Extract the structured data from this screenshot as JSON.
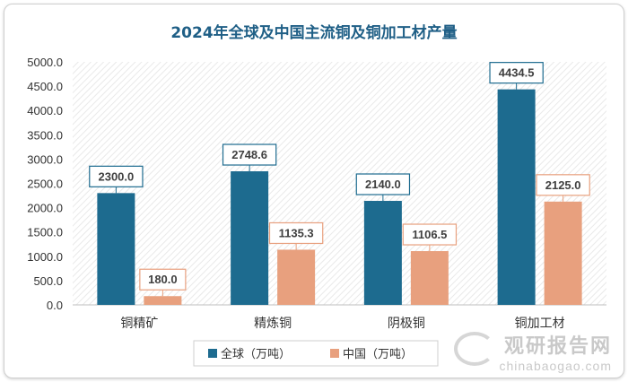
{
  "chart_data": {
    "type": "bar",
    "title": "2024年全球及中国主流铜及铜加工材产量",
    "categories": [
      "铜精矿",
      "精炼铜",
      "阴极铜",
      "铜加工材"
    ],
    "series": [
      {
        "name": "全球（万吨）",
        "color": "#1d6b8f",
        "values": [
          2300.0,
          2748.6,
          2140.0,
          4434.5
        ]
      },
      {
        "name": "中国（万吨）",
        "color": "#e8a07e",
        "values": [
          180.0,
          1135.3,
          1106.5,
          2125.0
        ]
      }
    ],
    "ylim": [
      0,
      5000
    ],
    "yticks": [
      "0.0",
      "500.0",
      "1000.0",
      "1500.0",
      "2000.0",
      "2500.0",
      "3000.0",
      "3500.0",
      "4000.0",
      "4500.0",
      "5000.0"
    ],
    "xlabel": "",
    "ylabel": "",
    "legend_position": "bottom",
    "data_labels": true
  },
  "watermark": {
    "name": "观研报告网",
    "url": "chinabaogao.com"
  }
}
